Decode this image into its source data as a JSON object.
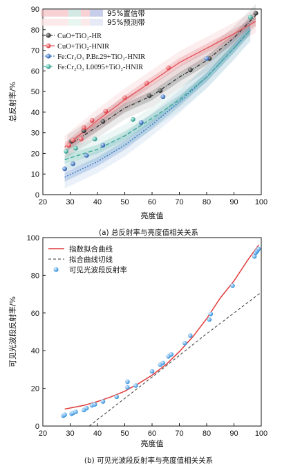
{
  "chart_data": [
    {
      "type": "scatter",
      "caption": "(a)  总反射率与亮度值相关关系",
      "xlabel": "亮度值",
      "ylabel": "总反射率/%",
      "xlim": [
        20,
        100
      ],
      "ylim": [
        0,
        90
      ],
      "xticks": [
        20,
        30,
        40,
        50,
        60,
        70,
        80,
        90,
        100
      ],
      "yticks": [
        0,
        10,
        20,
        30,
        40,
        50,
        60,
        70,
        80,
        90
      ],
      "band_legend": [
        "95%置信带",
        "95%预测带"
      ],
      "legend_position": "top-left",
      "series": [
        {
          "name": "CuO+TiO₂-HR",
          "color": "#3a3a3a",
          "points": [
            [
              30.5,
              26
            ],
            [
              35,
              31
            ],
            [
              42,
              35.5
            ],
            [
              59,
              48
            ],
            [
              63,
              50.5
            ],
            [
              74,
              60.5
            ],
            [
              81,
              66
            ],
            [
              98,
              88
            ]
          ],
          "fit": [
            [
              29,
              23.5
            ],
            [
              40,
              33
            ],
            [
              50,
              42
            ],
            [
              60,
              48
            ],
            [
              70,
              57
            ],
            [
              80,
              65
            ],
            [
              90,
              76
            ],
            [
              98,
              87
            ]
          ]
        },
        {
          "name": "CuO+TiO₂-HNIR",
          "color": "#e2585e",
          "points": [
            [
              29.5,
              24
            ],
            [
              31,
              26.5
            ],
            [
              34,
              27
            ],
            [
              35,
              32.5
            ],
            [
              38,
              36
            ],
            [
              43,
              40.5
            ],
            [
              50,
              47
            ],
            [
              58,
              54
            ],
            [
              66,
              61.5
            ]
          ],
          "fit": [
            [
              28,
              23
            ],
            [
              40,
              36
            ],
            [
              50,
              46
            ],
            [
              60,
              55
            ],
            [
              70,
              64
            ],
            [
              80,
              71
            ],
            [
              90,
              78
            ],
            [
              98,
              84
            ]
          ]
        },
        {
          "name": "Fe:Cr₂O₃ P.Br.29+TiO₂-HNIR",
          "color": "#3a78c4",
          "points": [
            [
              28,
              12.5
            ],
            [
              31,
              15
            ],
            [
              36,
              19
            ],
            [
              42,
              24
            ],
            [
              56,
              35
            ],
            [
              64,
              47.5
            ],
            [
              80,
              66
            ]
          ],
          "fit": [
            [
              28,
              8.5
            ],
            [
              40,
              16
            ],
            [
              50,
              24
            ],
            [
              60,
              34
            ],
            [
              70,
              45
            ],
            [
              80,
              57
            ],
            [
              90,
              71
            ],
            [
              96,
              80
            ]
          ]
        },
        {
          "name": "Fe:Cr₂O₃ L0095+TiO₂-HNIR",
          "color": "#3ea89a",
          "points": [
            [
              28.5,
              21
            ],
            [
              32,
              22.5
            ],
            [
              39,
              27
            ],
            [
              53,
              36.5
            ],
            [
              96,
              86
            ]
          ],
          "fit": [
            [
              28,
              17
            ],
            [
              40,
              22
            ],
            [
              50,
              28.5
            ],
            [
              60,
              37
            ],
            [
              70,
              46
            ],
            [
              80,
              57
            ],
            [
              90,
              71
            ],
            [
              96,
              80
            ]
          ]
        }
      ]
    },
    {
      "type": "scatter",
      "caption": "(b)  可见光波段反射率与亮度值相关关系",
      "xlabel": "亮度值",
      "ylabel": "可见光波段反射率/%",
      "xlim": [
        20,
        100
      ],
      "ylim": [
        0,
        100
      ],
      "xticks": [
        20,
        30,
        40,
        50,
        60,
        70,
        80,
        90,
        100
      ],
      "yticks": [
        0,
        20,
        40,
        60,
        80,
        100
      ],
      "legend_position": "top-left",
      "series": [
        {
          "name": "指数拟合曲线",
          "color": "#e03a3a",
          "style": "line",
          "fit": [
            [
              28,
              9
            ],
            [
              35,
              11
            ],
            [
              40,
              13
            ],
            [
              45,
              15.5
            ],
            [
              50,
              18.5
            ],
            [
              55,
              22.5
            ],
            [
              60,
              27
            ],
            [
              65,
              32.5
            ],
            [
              70,
              39.5
            ],
            [
              75,
              47.5
            ],
            [
              80,
              57
            ],
            [
              85,
              68
            ],
            [
              90,
              77
            ],
            [
              95,
              88
            ],
            [
              99,
              96
            ]
          ]
        },
        {
          "name": "拟合曲线切线",
          "color": "#333333",
          "style": "dashed",
          "fit": [
            [
              37,
              0
            ],
            [
              60,
              26
            ],
            [
              80,
              49
            ],
            [
              100,
              71
            ]
          ]
        },
        {
          "name": "可见光波段反射率",
          "color": "#4aa6ea",
          "style": "points",
          "points": [
            [
              27.5,
              5.5
            ],
            [
              28,
              6
            ],
            [
              30.5,
              6.5
            ],
            [
              31,
              7
            ],
            [
              32,
              7.5
            ],
            [
              35,
              8.5
            ],
            [
              36,
              9.5
            ],
            [
              38,
              11
            ],
            [
              39,
              11.5
            ],
            [
              42,
              13
            ],
            [
              47,
              15.5
            ],
            [
              51,
              20.5
            ],
            [
              51,
              23.5
            ],
            [
              54,
              21.5
            ],
            [
              60,
              29
            ],
            [
              63,
              32.5
            ],
            [
              64,
              33.5
            ],
            [
              66,
              37
            ],
            [
              67,
              38
            ],
            [
              72,
              44
            ],
            [
              74,
              48
            ],
            [
              81,
              56.5
            ],
            [
              81.5,
              59.5
            ],
            [
              89.5,
              74.5
            ],
            [
              97.5,
              90
            ],
            [
              98,
              92
            ],
            [
              98.5,
              93
            ],
            [
              99,
              94
            ]
          ]
        }
      ]
    }
  ]
}
